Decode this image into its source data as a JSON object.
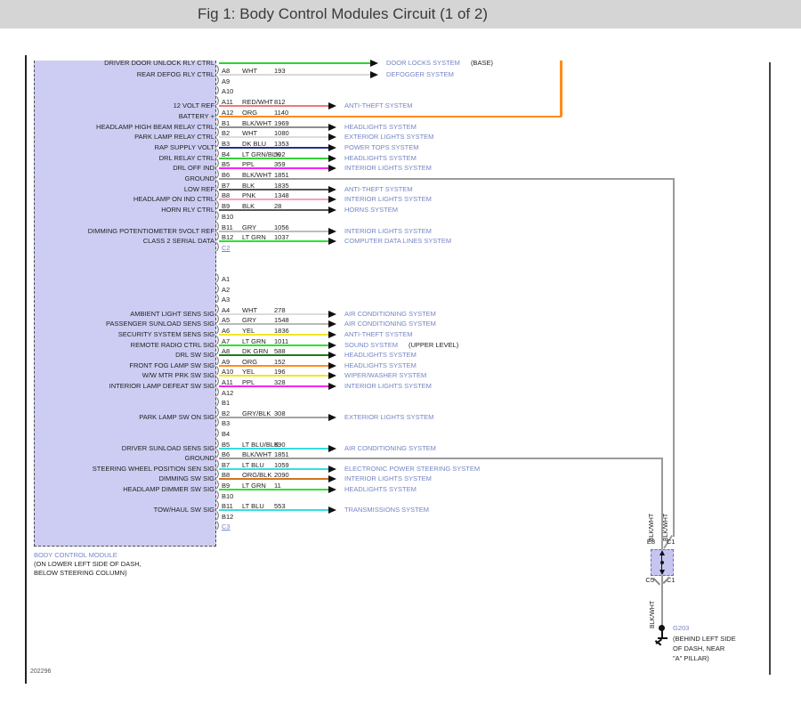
{
  "header": {
    "title": "Fig 1: Body Control Modules Circuit (1 of 2)"
  },
  "footer": {
    "drawing_number": "202296"
  },
  "module": {
    "name": "BODY CONTROL MODULE",
    "location_lines": [
      "(ON LOWER LEFT SIDE OF DASH,",
      "BELOW STEERING COLUMN)"
    ]
  },
  "colors": {
    "accent_link_blue": "#7585c5",
    "module_fill": "#cdcdf3",
    "splice_fill": "#c5c5f0",
    "battery_orange": "#ff8c1a",
    "ground_wire_gray": "#9a9a9a"
  },
  "partial_top_row": {
    "label": "DRIVER DOOR UNLOCK RLY CTRL",
    "system": "DOOR LOCKS SYSTEM",
    "suffix": "(BASE)",
    "wire_color": "#2ad42a",
    "route": "arrow-long"
  },
  "connectors": [
    {
      "id": "C2",
      "rows": [
        {
          "pin": "A8",
          "label": "REAR DEFOG RLY CTRL",
          "color": "WHT",
          "circuit": "193",
          "wire_color": "#d9d9d9",
          "route": "arrow-long",
          "system": "DEFOGGER SYSTEM"
        },
        {
          "pin": "A9"
        },
        {
          "pin": "A10"
        },
        {
          "pin": "A11",
          "label": "12 VOLT REF",
          "color": "RED/WHT",
          "circuit": "812",
          "wire_color": "#f07878",
          "route": "arrow",
          "system": "ANTI-THEFT SYSTEM"
        },
        {
          "pin": "A12",
          "label": "BATTERY +",
          "color": "ORG",
          "circuit": "1140",
          "wire_color": "#ff8c1a",
          "route": "up"
        },
        {
          "pin": "B1",
          "label": "HEADLAMP HIGH BEAM RELAY CTRL",
          "color": "BLK/WHT",
          "circuit": "1969",
          "wire_color": "#8f8f8f",
          "route": "arrow",
          "system": "HEADLIGHTS SYSTEM"
        },
        {
          "pin": "B2",
          "label": "PARK LAMP RELAY CTRL",
          "color": "WHT",
          "circuit": "1080",
          "wire_color": "#dcdcdc",
          "route": "arrow",
          "system": "EXTERIOR LIGHTS SYSTEM"
        },
        {
          "pin": "B3",
          "label": "RAP SUPPLY VOLT",
          "color": "DK BLU",
          "circuit": "1353",
          "wire_color": "#24308f",
          "route": "arrow",
          "system": "POWER TOPS SYSTEM"
        },
        {
          "pin": "B4",
          "label": "DRL RELAY CTRL",
          "color": "LT GRN/BLK",
          "circuit": "592",
          "wire_color": "#35d435",
          "route": "arrow",
          "system": "HEADLIGHTS SYSTEM"
        },
        {
          "pin": "B5",
          "label": "DRL OFF IND",
          "color": "PPL",
          "circuit": "359",
          "wire_color": "#f723f7",
          "route": "arrow",
          "system": "INTERIOR LIGHTS SYSTEM"
        },
        {
          "pin": "B6",
          "label": "GROUND",
          "color": "BLK/WHT",
          "circuit": "1851",
          "wire_color": "#9a9a9a",
          "route": "down-right"
        },
        {
          "pin": "B7",
          "label": "LOW REF",
          "color": "BLK",
          "circuit": "1835",
          "wire_color": "#565656",
          "route": "arrow",
          "system": "ANTI-THEFT SYSTEM"
        },
        {
          "pin": "B8",
          "label": "HEADLAMP ON IND CTRL",
          "color": "PNK",
          "circuit": "1348",
          "wire_color": "#ff9ebc",
          "route": "arrow",
          "system": "INTERIOR LIGHTS SYSTEM"
        },
        {
          "pin": "B9",
          "label": "HORN RLY CTRL",
          "color": "BLK",
          "circuit": "28",
          "wire_color": "#565656",
          "route": "arrow",
          "system": "HORNS SYSTEM"
        },
        {
          "pin": "B10"
        },
        {
          "pin": "B11",
          "label": "DIMMING POTENTIOMETER 5VOLT REF",
          "color": "GRY",
          "circuit": "1056",
          "wire_color": "#bdbdbd",
          "route": "arrow",
          "system": "INTERIOR LIGHTS SYSTEM"
        },
        {
          "pin": "B12",
          "label": "CLASS 2 SERIAL DATA",
          "color": "LT GRN",
          "circuit": "1037",
          "wire_color": "#2ae42a",
          "route": "arrow",
          "system": "COMPUTER DATA LINES SYSTEM"
        },
        {
          "pin": "C2",
          "connector_link": true
        }
      ]
    },
    {
      "id": "C3",
      "rows": [
        {
          "pin": "A1"
        },
        {
          "pin": "A2"
        },
        {
          "pin": "A3"
        },
        {
          "pin": "A4",
          "label": "AMBIENT LIGHT SENS SIG",
          "color": "WHT",
          "circuit": "278",
          "wire_color": "#dcdcdc",
          "route": "arrow",
          "system": "AIR CONDITIONING SYSTEM"
        },
        {
          "pin": "A5",
          "label": "PASSENGER SUNLOAD SENS SIG",
          "color": "GRY",
          "circuit": "1548",
          "wire_color": "#b9b9b9",
          "route": "arrow",
          "system": "AIR CONDITIONING SYSTEM"
        },
        {
          "pin": "A6",
          "label": "SECURITY SYSTEM SENS SIG",
          "color": "YEL",
          "circuit": "1836",
          "wire_color": "#f5e623",
          "route": "arrow",
          "system": "ANTI-THEFT SYSTEM"
        },
        {
          "pin": "A7",
          "label": "REMOTE RADIO CTRL SIG",
          "color": "LT GRN",
          "circuit": "1011",
          "wire_color": "#2ae42a",
          "route": "arrow",
          "system": "SOUND SYSTEM",
          "suffix": "(UPPER LEVEL)"
        },
        {
          "pin": "A8",
          "label": "DRL SW SIG",
          "color": "DK GRN",
          "circuit": "588",
          "wire_color": "#1d7a1d",
          "route": "arrow",
          "system": "HEADLIGHTS SYSTEM"
        },
        {
          "pin": "A9",
          "label": "FRONT FOG LAMP SW SIG",
          "color": "ORG",
          "circuit": "152",
          "wire_color": "#ff8c1a",
          "route": "arrow",
          "system": "HEADLIGHTS SYSTEM"
        },
        {
          "pin": "A10",
          "label": "W/W MTR PRK SW SIG",
          "color": "YEL",
          "circuit": "196",
          "wire_color": "#f5e623",
          "route": "arrow",
          "system": "WIPER/WASHER SYSTEM"
        },
        {
          "pin": "A11",
          "label": "INTERIOR LAMP DEFEAT SW SIG",
          "color": "PPL",
          "circuit": "328",
          "wire_color": "#f723f7",
          "route": "arrow",
          "system": "INTERIOR LIGHTS SYSTEM"
        },
        {
          "pin": "A12"
        },
        {
          "pin": "B1"
        },
        {
          "pin": "B2",
          "label": "PARK LAMP SW ON SIG",
          "color": "GRY/BLK",
          "circuit": "308",
          "wire_color": "#a3a3a3",
          "route": "arrow",
          "system": "EXTERIOR LIGHTS SYSTEM"
        },
        {
          "pin": "B3"
        },
        {
          "pin": "B4"
        },
        {
          "pin": "B5",
          "label": "DRIVER SUNLOAD SENS SIG",
          "color": "LT BLU/BLK",
          "circuit": "590",
          "wire_color": "#35dede",
          "route": "arrow",
          "system": "AIR CONDITIONING SYSTEM"
        },
        {
          "pin": "B6",
          "label": "GROUND",
          "color": "BLK/WHT",
          "circuit": "1851",
          "wire_color": "#9a9a9a",
          "route": "down-right-2"
        },
        {
          "pin": "B7",
          "label": "STEERING WHEEL POSITION SEN SIG",
          "color": "LT BLU",
          "circuit": "1059",
          "wire_color": "#35dede",
          "route": "arrow",
          "system": "ELECTRONIC POWER STEERING SYSTEM"
        },
        {
          "pin": "B8",
          "label": "DIMMING SW SIG",
          "color": "ORG/BLK",
          "circuit": "2090",
          "wire_color": "#d2741e",
          "route": "arrow",
          "system": "INTERIOR LIGHTS SYSTEM"
        },
        {
          "pin": "B9",
          "label": "HEADLAMP DIMMER SW SIG",
          "color": "LT GRN",
          "circuit": "11",
          "wire_color": "#2ae42a",
          "route": "arrow",
          "system": "HEADLIGHTS SYSTEM"
        },
        {
          "pin": "B10"
        },
        {
          "pin": "B11",
          "label": "TOW/HAUL SW SIG",
          "color": "LT BLU",
          "circuit": "553",
          "wire_color": "#35dede",
          "route": "arrow",
          "system": "TRANSMISSIONS SYSTEM"
        },
        {
          "pin": "B12"
        },
        {
          "pin": "C3",
          "connector_link": true
        }
      ]
    }
  ],
  "ground_run": {
    "wire_label": "BLK/WHT",
    "splice": {
      "top_left": "E8",
      "top_right": "C1",
      "bottom_left": "C5",
      "bottom_right": "C1"
    },
    "ground": {
      "id": "G203",
      "note_lines": [
        "(BEHIND LEFT SIDE",
        "OF DASH, NEAR",
        "\"A\" PILLAR)"
      ]
    }
  }
}
